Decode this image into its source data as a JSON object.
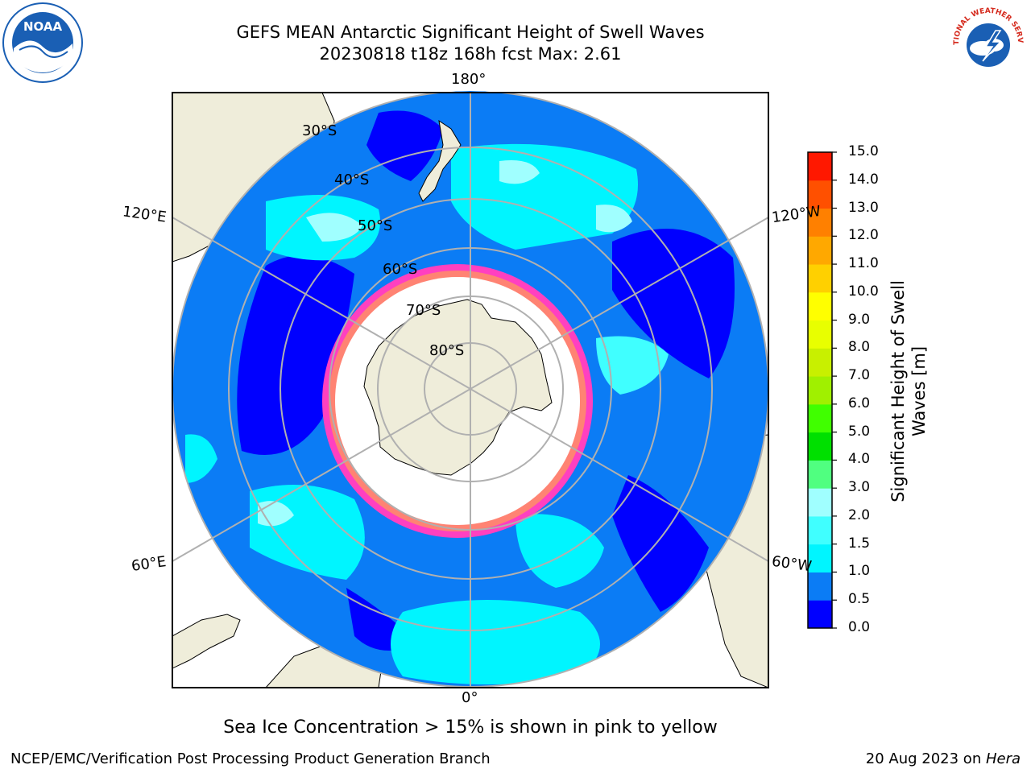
{
  "title": {
    "line1": "GEFS MEAN Antarctic Significant Height of Swell Waves",
    "line2": "20230818 t18z 168h fcst   Max: 2.61"
  },
  "logos": {
    "noaa": {
      "text": "NOAA",
      "icon": "noaa-logo-icon",
      "color": "#1a5fb4"
    },
    "nws": {
      "text": "NATIONAL WEATHER SERVICE",
      "icon": "nws-logo-icon",
      "color": "#d52b1e"
    }
  },
  "map": {
    "projection": "south-polar-stereographic",
    "longitude_labels": [
      "180°",
      "120°E",
      "120°W",
      "60°E",
      "60°W",
      "0°"
    ],
    "latitude_labels": [
      "30°S",
      "40°S",
      "50°S",
      "60°S",
      "70°S",
      "80°S"
    ],
    "colors": {
      "land": "#efedda",
      "ice_free_ocean_base": "#0b7cf5",
      "sea_ice": "#ffffff",
      "grid": "#b0b0b0"
    }
  },
  "colorbar": {
    "label_line1": "Significant Height of Swell",
    "label_line2": "Waves [m]",
    "ticks": [
      "0.0",
      "0.5",
      "1.0",
      "1.5",
      "2.0",
      "3.0",
      "4.0",
      "5.0",
      "6.0",
      "7.0",
      "8.0",
      "9.0",
      "10.0",
      "11.0",
      "12.0",
      "13.0",
      "14.0",
      "15.0"
    ],
    "colors": [
      "#0000ff",
      "#0b7cf5",
      "#00f5ff",
      "#40ffff",
      "#a0ffff",
      "#50ff80",
      "#00e000",
      "#40ff00",
      "#a0f000",
      "#c8f000",
      "#e8ff00",
      "#ffff00",
      "#ffd000",
      "#ffa800",
      "#ff8000",
      "#ff5000",
      "#ff1800"
    ]
  },
  "caption": "Sea Ice Concentration > 15% is shown in pink to yellow",
  "footer": {
    "left": "NCEP/EMC/Verification Post Processing Product Generation Branch",
    "right_date": "20 Aug 2023 on ",
    "right_host": "Hera"
  }
}
